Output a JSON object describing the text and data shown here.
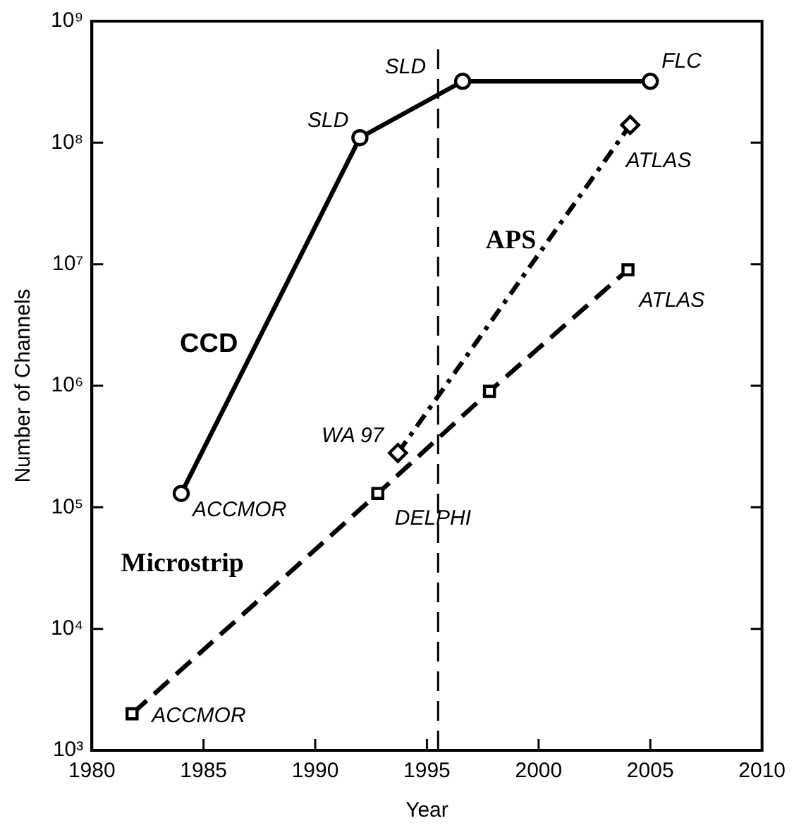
{
  "chart_data": {
    "type": "line",
    "xlabel": "Year",
    "ylabel": "Number of Channels",
    "log": "y",
    "grid": false,
    "legend": false,
    "xlim": [
      1980,
      2010
    ],
    "xticks": [
      1980,
      1985,
      1990,
      1995,
      2000,
      2005,
      2010
    ],
    "ylim": [
      1000,
      1000000000
    ],
    "yticks": [
      {
        "value": 1000,
        "label": "10³"
      },
      {
        "value": 10000,
        "label": "10⁴"
      },
      {
        "value": 100000,
        "label": "10⁵"
      },
      {
        "value": 1000000,
        "label": "10⁶"
      },
      {
        "value": 10000000,
        "label": "10⁷"
      },
      {
        "value": 100000000,
        "label": "10⁸"
      },
      {
        "value": 1000000000,
        "label": "10⁹"
      }
    ],
    "series": [
      {
        "name": "CCD",
        "color": "#000000",
        "marker": "circle",
        "line_style": "solid",
        "x": [
          1984,
          1992,
          1996.6,
          2005
        ],
        "values": [
          130000,
          110000000,
          320000000,
          320000000
        ]
      },
      {
        "name": "APS",
        "color": "#000000",
        "marker": "diamond",
        "line_style": "dashdot",
        "x": [
          1993.7,
          2004.1
        ],
        "values": [
          280000,
          140000000
        ]
      },
      {
        "name": "Microstrip",
        "color": "#000000",
        "marker": "square",
        "line_style": "dashed",
        "x": [
          1981.8,
          1992.8,
          1997.8,
          2004
        ],
        "values": [
          2000,
          130000,
          900000,
          9000000
        ]
      }
    ],
    "ref_lines": [
      {
        "axis": "x",
        "value": 1995.5,
        "color": "#000000",
        "line_style": "dashed"
      }
    ],
    "annotations": [
      {
        "text": "ACCMOR",
        "x": 1984,
        "y": 130000
      },
      {
        "text": "SLD",
        "x": 1992,
        "y": 110000000
      },
      {
        "text": "SLD",
        "x": 1996.6,
        "y": 320000000
      },
      {
        "text": "FLC",
        "x": 2005,
        "y": 320000000
      },
      {
        "text": "WA 97",
        "x": 1993.7,
        "y": 280000
      },
      {
        "text": "ATLAS",
        "x": 2004.1,
        "y": 140000000
      },
      {
        "text": "ACCMOR",
        "x": 1981.8,
        "y": 2000
      },
      {
        "text": "DELPHI",
        "x": 1992.8,
        "y": 130000
      },
      {
        "text": "ATLAS",
        "x": 2004,
        "y": 9000000
      }
    ]
  }
}
